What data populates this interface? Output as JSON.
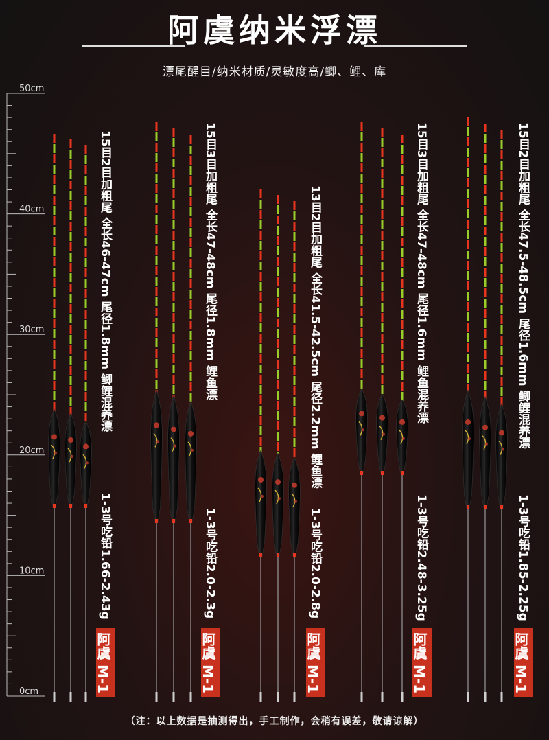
{
  "header": {
    "title": "阿虞纳米浮漂",
    "subtitle": "漂尾醒目/纳米材质/灵敏度高/鲫、鲤、库"
  },
  "ruler": {
    "labels": [
      "50cm",
      "40cm",
      "30cm",
      "20cm",
      "10cm",
      "0cm"
    ]
  },
  "products": [
    {
      "spec": "15目2目加粗尾  全长46-47cm  尾径1.8mm  鲫鲤混养漂",
      "weight": "1-3号吃铅1.66-2.43g",
      "brand": "阿虞 M-1"
    },
    {
      "spec": "15目3目加粗尾  全长47-48cm  尾径1.8mm  鲤鱼漂",
      "weight": "1-3号吃铅2.0-2.3g",
      "brand": "阿虞 M-1"
    },
    {
      "spec": "13目2目加粗尾  全长41.5-42.5cm  尾径2.2mm  鲤鱼漂",
      "weight": "1-3号吃铅2.0-2.8g",
      "brand": "阿虞 M-1"
    },
    {
      "spec": "15目3目加粗尾  全长47-48cm  尾径1.6mm  鲤鱼混养漂",
      "weight": "1-3号吃铅2.48-3.25g",
      "brand": "阿虞 M-1"
    },
    {
      "spec": "15目2目加粗尾  全长47.5-48.5cm  尾径1.6mm  鲫鲤混养漂",
      "weight": "1-3号吃铅1.85-2.25g",
      "brand": "阿虞 M-1"
    }
  ],
  "footer": {
    "note": "（注：以上数据是抽测得出，手工制作，会稍有误差，敬请谅解）"
  },
  "colors": {
    "tip_red": "#e8351f",
    "tip_green": "#9acd2a",
    "body_black": "#0d0d0d",
    "brand_red": "#c9311f"
  }
}
